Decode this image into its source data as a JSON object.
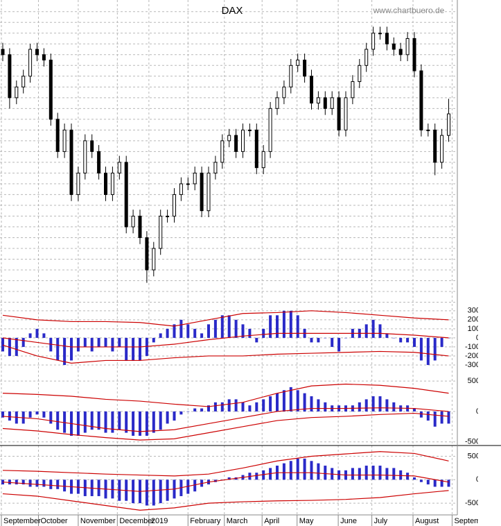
{
  "chart_data": [
    {
      "type": "candlestick",
      "title": "DAX",
      "source": "www.chartbuero.de",
      "color": "#000000",
      "grid": true,
      "ylim": [
        10000,
        12850
      ],
      "yticks": [
        10100,
        10200,
        10300,
        10400,
        10500,
        10600,
        10700,
        10800,
        10900,
        11000,
        11100,
        11200,
        11300,
        11400,
        11500,
        11600,
        11700,
        11800,
        11900,
        12000,
        12100,
        12200,
        12300,
        12400,
        12500,
        12600,
        12700,
        12800
      ],
      "xticks": [
        {
          "value": -0.2,
          "label": "September"
        },
        {
          "value": 5.2,
          "label": "October"
        },
        {
          "value": 11,
          "label": "November"
        },
        {
          "value": 16.7,
          "label": "December"
        },
        {
          "value": 21.3,
          "label": "2019"
        },
        {
          "value": 27,
          "label": "February"
        },
        {
          "value": 32.3,
          "label": "March"
        },
        {
          "value": 37.8,
          "label": "April"
        },
        {
          "value": 42.9,
          "label": "May"
        },
        {
          "value": 48.9,
          "label": "June"
        },
        {
          "value": 53.8,
          "label": "July"
        },
        {
          "value": 59.8,
          "label": "August"
        },
        {
          "value": 65.5,
          "label": "September"
        }
      ],
      "open": [
        12450,
        12400,
        12000,
        12100,
        12200,
        12450,
        12400,
        12350,
        11800,
        11500,
        11700,
        11100,
        11300,
        11600,
        11500,
        11300,
        11100,
        11300,
        11400,
        10800,
        10900,
        10700,
        10400,
        10600,
        10900,
        10900,
        11100,
        11200,
        11200,
        11300,
        10950,
        11300,
        11400,
        11600,
        11650,
        11500,
        11700,
        11700,
        11350,
        11500,
        11900,
        12000,
        12100,
        12300,
        12350,
        12200,
        11950,
        12000,
        11900,
        12000,
        11700,
        12000,
        12150,
        12300,
        12450,
        12600,
        12600,
        12500,
        12450,
        12400,
        12550,
        12250,
        11700,
        11700,
        11400,
        11650
      ],
      "high": [
        12510,
        12460,
        12160,
        12260,
        12500,
        12510,
        12460,
        12410,
        11860,
        11760,
        11760,
        11360,
        11660,
        11660,
        11560,
        11360,
        11360,
        11460,
        11460,
        10960,
        10960,
        10760,
        10660,
        10960,
        10960,
        11160,
        11260,
        11260,
        11360,
        11360,
        11360,
        11460,
        11660,
        11710,
        11710,
        11760,
        11760,
        11760,
        11560,
        11960,
        12060,
        12160,
        12360,
        12410,
        12410,
        12260,
        12060,
        12060,
        12060,
        12060,
        12060,
        12210,
        12360,
        12510,
        12660,
        12660,
        12660,
        12560,
        12510,
        12610,
        12610,
        12310,
        11760,
        11760,
        11710,
        11990
      ],
      "low": [
        12340,
        11900,
        11940,
        12040,
        12140,
        12340,
        12290,
        11740,
        11440,
        11440,
        11040,
        11040,
        11240,
        11440,
        11240,
        11040,
        11040,
        11240,
        10740,
        10740,
        10640,
        10280,
        10340,
        10540,
        10840,
        10840,
        11040,
        11140,
        11140,
        10890,
        10890,
        11240,
        11340,
        11540,
        11440,
        11440,
        11640,
        11290,
        11290,
        11440,
        11840,
        11940,
        12040,
        12240,
        12140,
        11890,
        11890,
        11840,
        11840,
        11640,
        11640,
        11940,
        12090,
        12240,
        12390,
        12540,
        12440,
        12390,
        12340,
        12340,
        12190,
        11640,
        11640,
        11280,
        11340,
        11590
      ],
      "close": [
        12400,
        12000,
        12100,
        12200,
        12450,
        12400,
        12350,
        11800,
        11500,
        11700,
        11100,
        11300,
        11600,
        11500,
        11300,
        11100,
        11300,
        11400,
        10800,
        10900,
        10700,
        10400,
        10600,
        10900,
        10900,
        11100,
        11200,
        11200,
        11300,
        10950,
        11300,
        11400,
        11600,
        11650,
        11500,
        11700,
        11700,
        11350,
        11500,
        11900,
        12000,
        12100,
        12300,
        12350,
        12200,
        11950,
        12000,
        11900,
        12000,
        11700,
        12000,
        12150,
        12300,
        12450,
        12600,
        12600,
        12500,
        12450,
        12400,
        12550,
        12250,
        11700,
        11700,
        11400,
        11650,
        11850
      ]
    },
    {
      "type": "oscillator",
      "color": "#2a2ac8",
      "grid": true,
      "ylim": [
        -400,
        360
      ],
      "yticks": [
        300,
        200,
        100,
        0,
        -100,
        -200,
        -300
      ],
      "values": [
        -150,
        -200,
        -200,
        -100,
        50,
        100,
        50,
        -150,
        -250,
        -300,
        -250,
        -150,
        -100,
        -150,
        -100,
        -100,
        -150,
        -100,
        -250,
        -250,
        -250,
        -200,
        -50,
        50,
        100,
        150,
        200,
        150,
        100,
        50,
        150,
        200,
        250,
        250,
        200,
        150,
        100,
        -50,
        100,
        250,
        250,
        300,
        300,
        250,
        100,
        -50,
        -50,
        0,
        -100,
        -150,
        0,
        100,
        100,
        150,
        200,
        150,
        50,
        0,
        -50,
        -50,
        -100,
        -250,
        -300,
        -250,
        -100,
        0
      ],
      "bands": [
        {
          "color": "#cc0000",
          "x": [
            0,
            5,
            10,
            15,
            20,
            25,
            30,
            35,
            40,
            45,
            50,
            55,
            60,
            65
          ],
          "values": [
            250,
            200,
            180,
            180,
            170,
            130,
            200,
            270,
            280,
            300,
            280,
            250,
            220,
            200
          ]
        },
        {
          "color": "#cc0000",
          "x": [
            0,
            5,
            10,
            15,
            20,
            25,
            30,
            35,
            40,
            45,
            50,
            55,
            60,
            65
          ],
          "values": [
            0,
            -50,
            -100,
            -100,
            -100,
            -70,
            -20,
            20,
            50,
            50,
            50,
            50,
            30,
            0
          ]
        },
        {
          "color": "#cc0000",
          "x": [
            0,
            5,
            10,
            15,
            20,
            25,
            30,
            35,
            40,
            45,
            50,
            55,
            60,
            65
          ],
          "values": [
            -80,
            -200,
            -280,
            -250,
            -250,
            -220,
            -200,
            -200,
            -180,
            -170,
            -160,
            -150,
            -160,
            -200
          ]
        }
      ]
    },
    {
      "type": "oscillator",
      "color": "#2a2ac8",
      "grid": true,
      "ylim": [
        -560,
        570
      ],
      "yticks": [
        500,
        0,
        -500
      ],
      "values": [
        -100,
        -150,
        -200,
        -200,
        -100,
        -50,
        -100,
        -200,
        -300,
        -350,
        -400,
        -400,
        -350,
        -300,
        -300,
        -350,
        -350,
        -300,
        -350,
        -400,
        -400,
        -400,
        -350,
        -300,
        -200,
        -150,
        -50,
        0,
        50,
        50,
        100,
        150,
        150,
        200,
        200,
        150,
        100,
        150,
        200,
        250,
        300,
        350,
        400,
        350,
        300,
        250,
        200,
        150,
        100,
        100,
        100,
        100,
        150,
        200,
        250,
        250,
        200,
        150,
        100,
        100,
        50,
        -100,
        -150,
        -250,
        -200,
        -200
      ],
      "bands": [
        {
          "color": "#cc0000",
          "x": [
            0,
            5,
            10,
            15,
            20,
            25,
            30,
            35,
            40,
            45,
            50,
            55,
            60,
            65
          ],
          "values": [
            300,
            280,
            250,
            200,
            170,
            120,
            80,
            150,
            300,
            420,
            450,
            430,
            380,
            300
          ]
        },
        {
          "color": "#cc0000",
          "x": [
            0,
            5,
            10,
            15,
            20,
            25,
            30,
            35,
            40,
            45,
            50,
            55,
            60,
            65
          ],
          "values": [
            -80,
            -120,
            -200,
            -280,
            -330,
            -300,
            -200,
            -100,
            0,
            50,
            50,
            60,
            50,
            0
          ]
        },
        {
          "color": "#cc0000",
          "x": [
            0,
            5,
            10,
            15,
            20,
            25,
            30,
            35,
            40,
            45,
            50,
            55,
            60,
            65
          ],
          "values": [
            -280,
            -320,
            -380,
            -430,
            -470,
            -450,
            -350,
            -250,
            -150,
            -100,
            -80,
            -50,
            -30,
            -80
          ]
        }
      ]
    },
    {
      "type": "oscillator",
      "color": "#2a2ac8",
      "grid": true,
      "ylim": [
        -750,
        700
      ],
      "yticks": [
        500,
        0,
        -500
      ],
      "values": [
        -100,
        -100,
        -100,
        -100,
        -150,
        -150,
        -150,
        -200,
        -200,
        -250,
        -300,
        -300,
        -350,
        -350,
        -350,
        -400,
        -400,
        -450,
        -450,
        -500,
        -500,
        -550,
        -550,
        -500,
        -450,
        -400,
        -350,
        -300,
        -250,
        -150,
        -100,
        -50,
        0,
        50,
        50,
        100,
        150,
        150,
        200,
        250,
        300,
        350,
        400,
        450,
        450,
        400,
        350,
        300,
        250,
        200,
        200,
        250,
        250,
        300,
        300,
        300,
        250,
        250,
        200,
        150,
        50,
        -50,
        -100,
        -150,
        -150,
        -150
      ],
      "bands": [
        {
          "color": "#cc0000",
          "x": [
            0,
            5,
            10,
            15,
            20,
            25,
            30,
            35,
            40,
            45,
            50,
            55,
            60,
            65
          ],
          "values": [
            200,
            180,
            150,
            120,
            100,
            80,
            120,
            250,
            400,
            500,
            550,
            600,
            560,
            400
          ]
        },
        {
          "color": "#cc0000",
          "x": [
            0,
            5,
            10,
            15,
            20,
            25,
            30,
            35,
            40,
            45,
            50,
            55,
            60,
            65
          ],
          "values": [
            -50,
            -100,
            -150,
            -200,
            -250,
            -200,
            -50,
            50,
            150,
            150,
            100,
            100,
            80,
            -50
          ]
        },
        {
          "color": "#cc0000",
          "x": [
            0,
            5,
            10,
            15,
            20,
            25,
            30,
            35,
            40,
            45,
            50,
            55,
            60,
            65
          ],
          "values": [
            -300,
            -350,
            -450,
            -550,
            -650,
            -600,
            -500,
            -470,
            -450,
            -440,
            -420,
            -380,
            -300,
            -230
          ]
        }
      ]
    }
  ]
}
